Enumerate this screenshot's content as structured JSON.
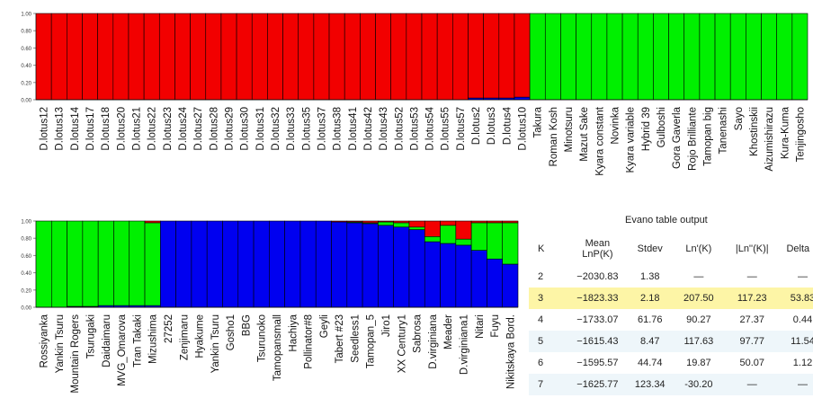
{
  "colors": {
    "red": "#f20000",
    "green": "#00f000",
    "blue": "#0000f0",
    "highlight": "#fdf5a6",
    "stripe": "#eef6fa"
  },
  "chart_data": [
    {
      "type": "bar",
      "stacked": true,
      "ylim": [
        0,
        1
      ],
      "yticks": [
        "0.00",
        "0.20",
        "0.40",
        "0.60",
        "0.80",
        "1.00"
      ],
      "categories": [
        "D.lotus12",
        "D.lotus13",
        "D.lotus14",
        "D.lotus17",
        "D.lotus18",
        "D.lotus20",
        "D.lotus21",
        "D.lotus22",
        "D.lotus23",
        "D.lotus24",
        "D.lotus27",
        "D.lotus28",
        "D.lotus29",
        "D.lotus30",
        "D.lotus31",
        "D.lotus32",
        "D.lotus33",
        "D.lotus35",
        "D.lotus37",
        "D.lotus38",
        "D.lotus41",
        "D.lotus42",
        "D.lotus43",
        "D.lotus52",
        "D.lotus53",
        "D.lotus54",
        "D.lotus55",
        "D.lotus57",
        "D.lotus2",
        "D.lotus3",
        "D.lotus4",
        "D.lotus10",
        "Takura",
        "Roman Kosh",
        "Minotsuru",
        "Mazut Sake",
        "Kyara constant",
        "Novinka",
        "Kyara variable",
        "Hybrid 39",
        "Gulboshi",
        "Gora Gaverla",
        "Rojo Brilliante",
        "Tamopan big",
        "Tanenashi",
        "Sayo",
        "Khostinskii",
        "Aizumishirazu",
        "Kura-Kuma",
        "Tenjingosho"
      ],
      "series": [
        {
          "color": "blue",
          "values": [
            0,
            0,
            0,
            0,
            0,
            0,
            0,
            0,
            0,
            0,
            0,
            0,
            0,
            0,
            0,
            0,
            0,
            0,
            0,
            0,
            0,
            0,
            0,
            0,
            0,
            0,
            0,
            0,
            0.02,
            0.02,
            0.02,
            0.03,
            0,
            0,
            0,
            0,
            0,
            0,
            0,
            0,
            0,
            0,
            0,
            0,
            0,
            0,
            0,
            0,
            0,
            0
          ]
        },
        {
          "color": "green",
          "values": [
            0,
            0,
            0,
            0,
            0,
            0,
            0,
            0,
            0,
            0,
            0,
            0,
            0,
            0,
            0,
            0,
            0,
            0,
            0,
            0,
            0,
            0,
            0,
            0,
            0,
            0,
            0,
            0,
            0,
            0,
            0,
            0,
            1,
            1,
            1,
            1,
            1,
            1,
            1,
            1,
            1,
            1,
            1,
            1,
            1,
            1,
            1,
            1,
            1,
            1
          ]
        },
        {
          "color": "red",
          "values": [
            1,
            1,
            1,
            1,
            1,
            1,
            1,
            1,
            1,
            1,
            1,
            1,
            1,
            1,
            1,
            1,
            1,
            1,
            1,
            1,
            1,
            1,
            1,
            1,
            1,
            1,
            1,
            1,
            0.98,
            0.98,
            0.98,
            0.97,
            0,
            0,
            0,
            0,
            0,
            0,
            0,
            0,
            0,
            0,
            0,
            0,
            0,
            0,
            0,
            0,
            0,
            0
          ]
        }
      ]
    },
    {
      "type": "bar",
      "stacked": true,
      "ylim": [
        0,
        1
      ],
      "yticks": [
        "0.00",
        "0.20",
        "0.40",
        "0.60",
        "0.80",
        "1.00"
      ],
      "categories": [
        "Rossiyanka",
        "Yankin Tsuru",
        "Mountain Rogers",
        "Tsurugaki",
        "Daidaimaru",
        "MVG_Omarova",
        "Tran Takaki",
        "Mizushima",
        "27252",
        "Zenjimaru",
        "Hyakume",
        "Yankin Tsuru",
        "Gosho1",
        "BBG",
        "Tsurunoko",
        "Tamopansmall",
        "Hachiya",
        "Pollinator#8",
        "Geyli",
        "Tabert #23",
        "Seedless1",
        "Tamopan_5",
        "Jiro1",
        "XX Century1",
        "Sabrosa",
        "D.virginiana",
        "Meader",
        "D.virginiana1",
        "Nitari",
        "Fuyu",
        "Nikitskaya Bord."
      ],
      "series": [
        {
          "color": "blue",
          "values": [
            0,
            0,
            0.01,
            0.01,
            0.02,
            0.02,
            0.02,
            0.02,
            1,
            1,
            1,
            1,
            1,
            1,
            1,
            1,
            1,
            1,
            1,
            0.99,
            0.98,
            0.97,
            0.95,
            0.93,
            0.9,
            0.76,
            0.74,
            0.72,
            0.66,
            0.56,
            0.5
          ]
        },
        {
          "color": "green",
          "values": [
            1,
            1,
            0.99,
            0.99,
            0.98,
            0.98,
            0.98,
            0.96,
            0,
            0,
            0,
            0,
            0,
            0,
            0,
            0,
            0,
            0,
            0,
            0,
            0.01,
            0.01,
            0.04,
            0.05,
            0.03,
            0.06,
            0.21,
            0.07,
            0.32,
            0.42,
            0.48
          ]
        },
        {
          "color": "red",
          "values": [
            0,
            0,
            0,
            0,
            0,
            0,
            0,
            0.02,
            0,
            0,
            0,
            0,
            0,
            0,
            0,
            0,
            0,
            0,
            0,
            0.01,
            0.01,
            0.02,
            0.01,
            0.02,
            0.07,
            0.18,
            0.05,
            0.21,
            0.02,
            0.02,
            0.02
          ]
        }
      ]
    }
  ],
  "evano": {
    "title": "Evano table output",
    "headers": [
      "K",
      "Mean LnP(K)",
      "Stdev",
      "Ln'(K)",
      "|Ln''(K)|",
      "Delta K"
    ],
    "rows": [
      [
        "2",
        "−2030.83",
        "1.38",
        "—",
        "—",
        "—"
      ],
      [
        "3",
        "−1823.33",
        "2.18",
        "207.50",
        "117.23",
        "53.83"
      ],
      [
        "4",
        "−1733.07",
        "61.76",
        "90.27",
        "27.37",
        "0.44"
      ],
      [
        "5",
        "−1615.43",
        "8.47",
        "117.63",
        "97.77",
        "11.54"
      ],
      [
        "6",
        "−1595.57",
        "44.74",
        "19.87",
        "50.07",
        "1.12"
      ],
      [
        "7",
        "−1625.77",
        "123.34",
        "-30.20",
        "—",
        "—"
      ]
    ]
  }
}
